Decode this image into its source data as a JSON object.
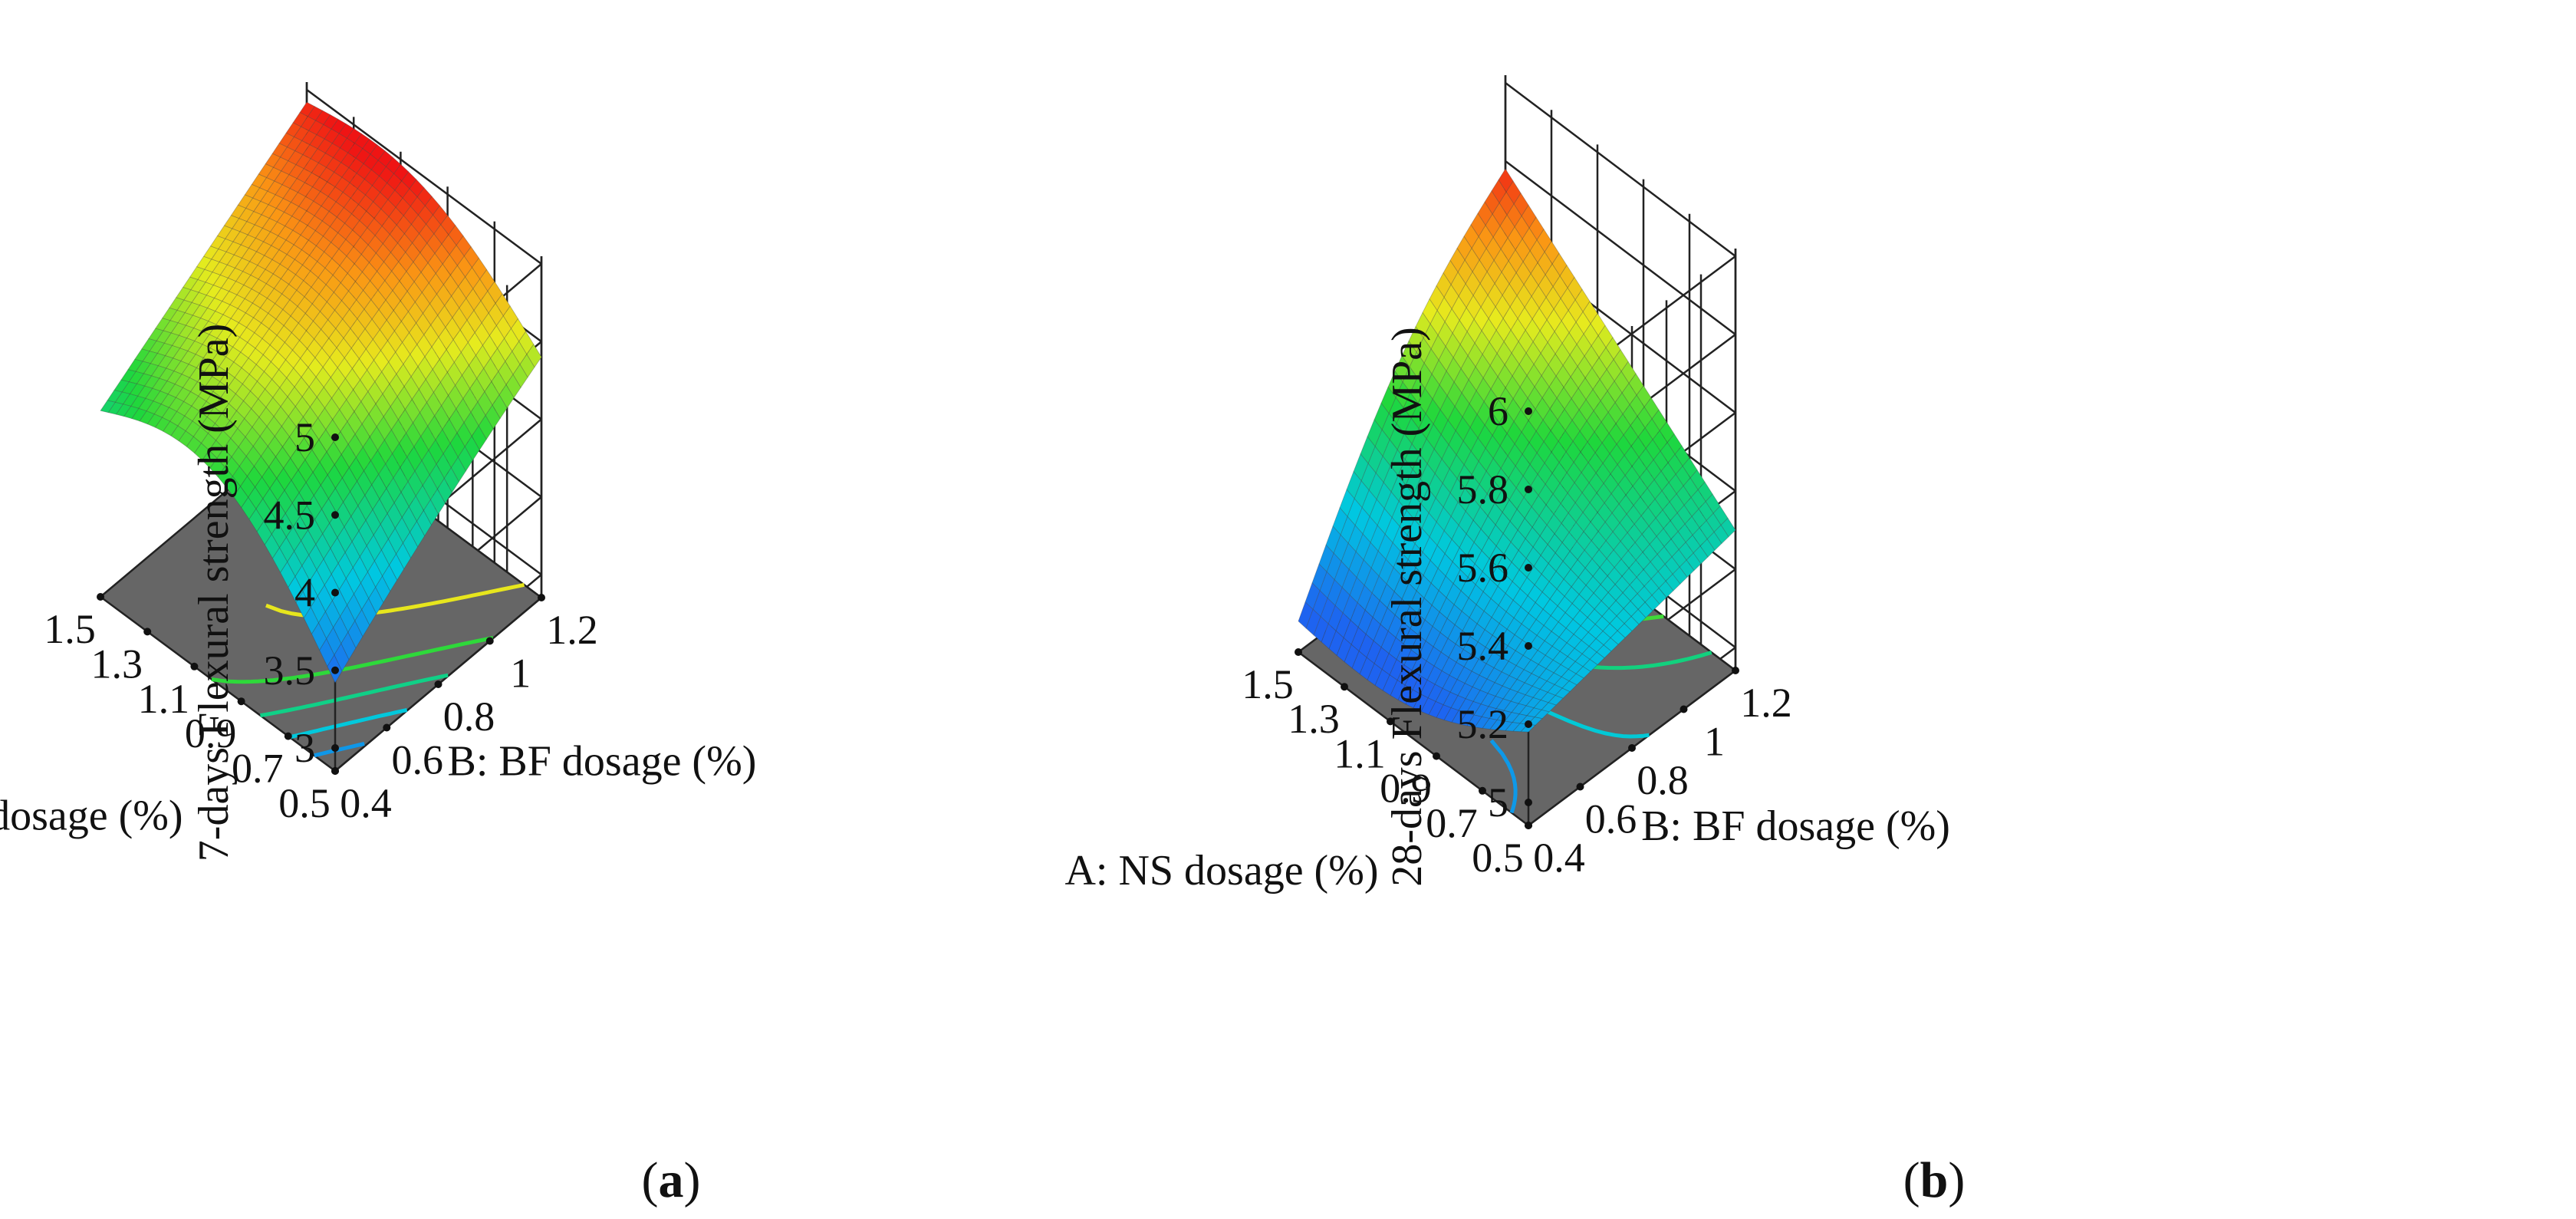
{
  "colors": {
    "floor": "#666666",
    "grid": "#222222",
    "surface_low": "#1e63f0",
    "surface_high": "#ef1414"
  },
  "chart_data": [
    {
      "type": "surface",
      "panel": "a",
      "caption_letter": "a",
      "zlabel": "7-days Flexural strength (MPa)",
      "xlabel": "A: NS dosage (%)",
      "ylabel": "B: BF dosage (%)",
      "x_ticks": [
        "0.5",
        "0.7",
        "0.9",
        "1.1",
        "1.3",
        "1.5"
      ],
      "y_ticks": [
        "0.4",
        "0.6",
        "0.8",
        "1",
        "1.2"
      ],
      "z_ticks": [
        "3",
        "3.5",
        "4",
        "4.5",
        "5"
      ],
      "xlim": [
        0.5,
        1.5
      ],
      "ylim": [
        0.4,
        1.2
      ],
      "zlim": [
        3.0,
        5.0
      ],
      "color_range": [
        3.4,
        4.95
      ],
      "surface_corners": {
        "NS0.5_BF0.4": 3.42,
        "NS1.5_BF0.4": 4.05,
        "NS0.5_BF1.2": 4.55,
        "NS1.5_BF1.2": 4.92
      },
      "contour_levels": [
        3.6,
        3.8,
        4.0,
        4.2,
        4.5
      ]
    },
    {
      "type": "surface",
      "panel": "b",
      "caption_letter": "b",
      "zlabel": "28-days Flexural strength (MPa)",
      "xlabel": "A: NS dosage (%)",
      "ylabel": "B: BF dosage (%)",
      "x_ticks": [
        "0.5",
        "0.7",
        "0.9",
        "1.1",
        "1.3",
        "1.5"
      ],
      "y_ticks": [
        "0.4",
        "0.6",
        "0.8",
        "1",
        "1.2"
      ],
      "z_ticks": [
        "5",
        "5.2",
        "5.4",
        "5.6",
        "5.8",
        "6"
      ],
      "xlim": [
        0.5,
        1.5
      ],
      "ylim": [
        0.4,
        1.2
      ],
      "zlim": [
        5.0,
        6.0
      ],
      "color_range": [
        5.05,
        5.8
      ],
      "surface_corners": {
        "NS0.5_BF0.4": 5.18,
        "NS1.5_BF0.4": 5.02,
        "NS0.5_BF1.2": 5.3,
        "NS1.5_BF1.2": 5.78
      },
      "contour_levels": [
        5.15,
        5.25,
        5.35,
        5.45,
        5.55,
        5.65
      ]
    }
  ]
}
